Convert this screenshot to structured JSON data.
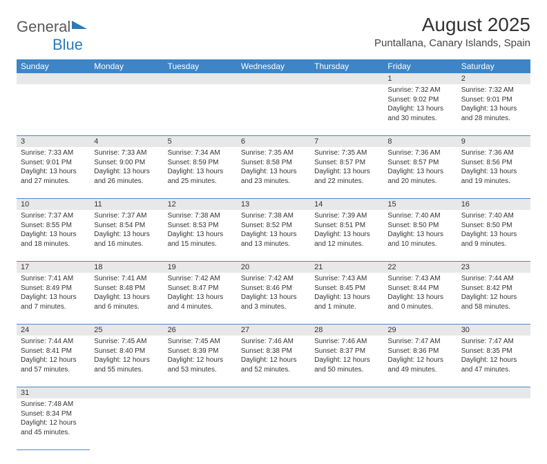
{
  "logo": {
    "general": "General",
    "blue": "Blue"
  },
  "header": {
    "month_title": "August 2025",
    "location": "Puntallana, Canary Islands, Spain"
  },
  "daynames": [
    "Sunday",
    "Monday",
    "Tuesday",
    "Wednesday",
    "Thursday",
    "Friday",
    "Saturday"
  ],
  "weeks": [
    {
      "nums": [
        "",
        "",
        "",
        "",
        "",
        "1",
        "2"
      ],
      "cells": [
        null,
        null,
        null,
        null,
        null,
        {
          "sr": "Sunrise: 7:32 AM",
          "ss": "Sunset: 9:02 PM",
          "d1": "Daylight: 13 hours",
          "d2": "and 30 minutes."
        },
        {
          "sr": "Sunrise: 7:32 AM",
          "ss": "Sunset: 9:01 PM",
          "d1": "Daylight: 13 hours",
          "d2": "and 28 minutes."
        }
      ]
    },
    {
      "nums": [
        "3",
        "4",
        "5",
        "6",
        "7",
        "8",
        "9"
      ],
      "cells": [
        {
          "sr": "Sunrise: 7:33 AM",
          "ss": "Sunset: 9:01 PM",
          "d1": "Daylight: 13 hours",
          "d2": "and 27 minutes."
        },
        {
          "sr": "Sunrise: 7:33 AM",
          "ss": "Sunset: 9:00 PM",
          "d1": "Daylight: 13 hours",
          "d2": "and 26 minutes."
        },
        {
          "sr": "Sunrise: 7:34 AM",
          "ss": "Sunset: 8:59 PM",
          "d1": "Daylight: 13 hours",
          "d2": "and 25 minutes."
        },
        {
          "sr": "Sunrise: 7:35 AM",
          "ss": "Sunset: 8:58 PM",
          "d1": "Daylight: 13 hours",
          "d2": "and 23 minutes."
        },
        {
          "sr": "Sunrise: 7:35 AM",
          "ss": "Sunset: 8:57 PM",
          "d1": "Daylight: 13 hours",
          "d2": "and 22 minutes."
        },
        {
          "sr": "Sunrise: 7:36 AM",
          "ss": "Sunset: 8:57 PM",
          "d1": "Daylight: 13 hours",
          "d2": "and 20 minutes."
        },
        {
          "sr": "Sunrise: 7:36 AM",
          "ss": "Sunset: 8:56 PM",
          "d1": "Daylight: 13 hours",
          "d2": "and 19 minutes."
        }
      ]
    },
    {
      "nums": [
        "10",
        "11",
        "12",
        "13",
        "14",
        "15",
        "16"
      ],
      "cells": [
        {
          "sr": "Sunrise: 7:37 AM",
          "ss": "Sunset: 8:55 PM",
          "d1": "Daylight: 13 hours",
          "d2": "and 18 minutes."
        },
        {
          "sr": "Sunrise: 7:37 AM",
          "ss": "Sunset: 8:54 PM",
          "d1": "Daylight: 13 hours",
          "d2": "and 16 minutes."
        },
        {
          "sr": "Sunrise: 7:38 AM",
          "ss": "Sunset: 8:53 PM",
          "d1": "Daylight: 13 hours",
          "d2": "and 15 minutes."
        },
        {
          "sr": "Sunrise: 7:38 AM",
          "ss": "Sunset: 8:52 PM",
          "d1": "Daylight: 13 hours",
          "d2": "and 13 minutes."
        },
        {
          "sr": "Sunrise: 7:39 AM",
          "ss": "Sunset: 8:51 PM",
          "d1": "Daylight: 13 hours",
          "d2": "and 12 minutes."
        },
        {
          "sr": "Sunrise: 7:40 AM",
          "ss": "Sunset: 8:50 PM",
          "d1": "Daylight: 13 hours",
          "d2": "and 10 minutes."
        },
        {
          "sr": "Sunrise: 7:40 AM",
          "ss": "Sunset: 8:50 PM",
          "d1": "Daylight: 13 hours",
          "d2": "and 9 minutes."
        }
      ]
    },
    {
      "nums": [
        "17",
        "18",
        "19",
        "20",
        "21",
        "22",
        "23"
      ],
      "cells": [
        {
          "sr": "Sunrise: 7:41 AM",
          "ss": "Sunset: 8:49 PM",
          "d1": "Daylight: 13 hours",
          "d2": "and 7 minutes."
        },
        {
          "sr": "Sunrise: 7:41 AM",
          "ss": "Sunset: 8:48 PM",
          "d1": "Daylight: 13 hours",
          "d2": "and 6 minutes."
        },
        {
          "sr": "Sunrise: 7:42 AM",
          "ss": "Sunset: 8:47 PM",
          "d1": "Daylight: 13 hours",
          "d2": "and 4 minutes."
        },
        {
          "sr": "Sunrise: 7:42 AM",
          "ss": "Sunset: 8:46 PM",
          "d1": "Daylight: 13 hours",
          "d2": "and 3 minutes."
        },
        {
          "sr": "Sunrise: 7:43 AM",
          "ss": "Sunset: 8:45 PM",
          "d1": "Daylight: 13 hours",
          "d2": "and 1 minute."
        },
        {
          "sr": "Sunrise: 7:43 AM",
          "ss": "Sunset: 8:44 PM",
          "d1": "Daylight: 13 hours",
          "d2": "and 0 minutes."
        },
        {
          "sr": "Sunrise: 7:44 AM",
          "ss": "Sunset: 8:42 PM",
          "d1": "Daylight: 12 hours",
          "d2": "and 58 minutes."
        }
      ]
    },
    {
      "nums": [
        "24",
        "25",
        "26",
        "27",
        "28",
        "29",
        "30"
      ],
      "cells": [
        {
          "sr": "Sunrise: 7:44 AM",
          "ss": "Sunset: 8:41 PM",
          "d1": "Daylight: 12 hours",
          "d2": "and 57 minutes."
        },
        {
          "sr": "Sunrise: 7:45 AM",
          "ss": "Sunset: 8:40 PM",
          "d1": "Daylight: 12 hours",
          "d2": "and 55 minutes."
        },
        {
          "sr": "Sunrise: 7:45 AM",
          "ss": "Sunset: 8:39 PM",
          "d1": "Daylight: 12 hours",
          "d2": "and 53 minutes."
        },
        {
          "sr": "Sunrise: 7:46 AM",
          "ss": "Sunset: 8:38 PM",
          "d1": "Daylight: 12 hours",
          "d2": "and 52 minutes."
        },
        {
          "sr": "Sunrise: 7:46 AM",
          "ss": "Sunset: 8:37 PM",
          "d1": "Daylight: 12 hours",
          "d2": "and 50 minutes."
        },
        {
          "sr": "Sunrise: 7:47 AM",
          "ss": "Sunset: 8:36 PM",
          "d1": "Daylight: 12 hours",
          "d2": "and 49 minutes."
        },
        {
          "sr": "Sunrise: 7:47 AM",
          "ss": "Sunset: 8:35 PM",
          "d1": "Daylight: 12 hours",
          "d2": "and 47 minutes."
        }
      ]
    },
    {
      "nums": [
        "31",
        "",
        "",
        "",
        "",
        "",
        ""
      ],
      "cells": [
        {
          "sr": "Sunrise: 7:48 AM",
          "ss": "Sunset: 8:34 PM",
          "d1": "Daylight: 12 hours",
          "d2": "and 45 minutes."
        },
        null,
        null,
        null,
        null,
        null,
        null
      ]
    }
  ],
  "colors": {
    "header_bg": "#3d85c6",
    "daynum_bg": "#e8e8e8",
    "row_border": "#4a86c5"
  }
}
